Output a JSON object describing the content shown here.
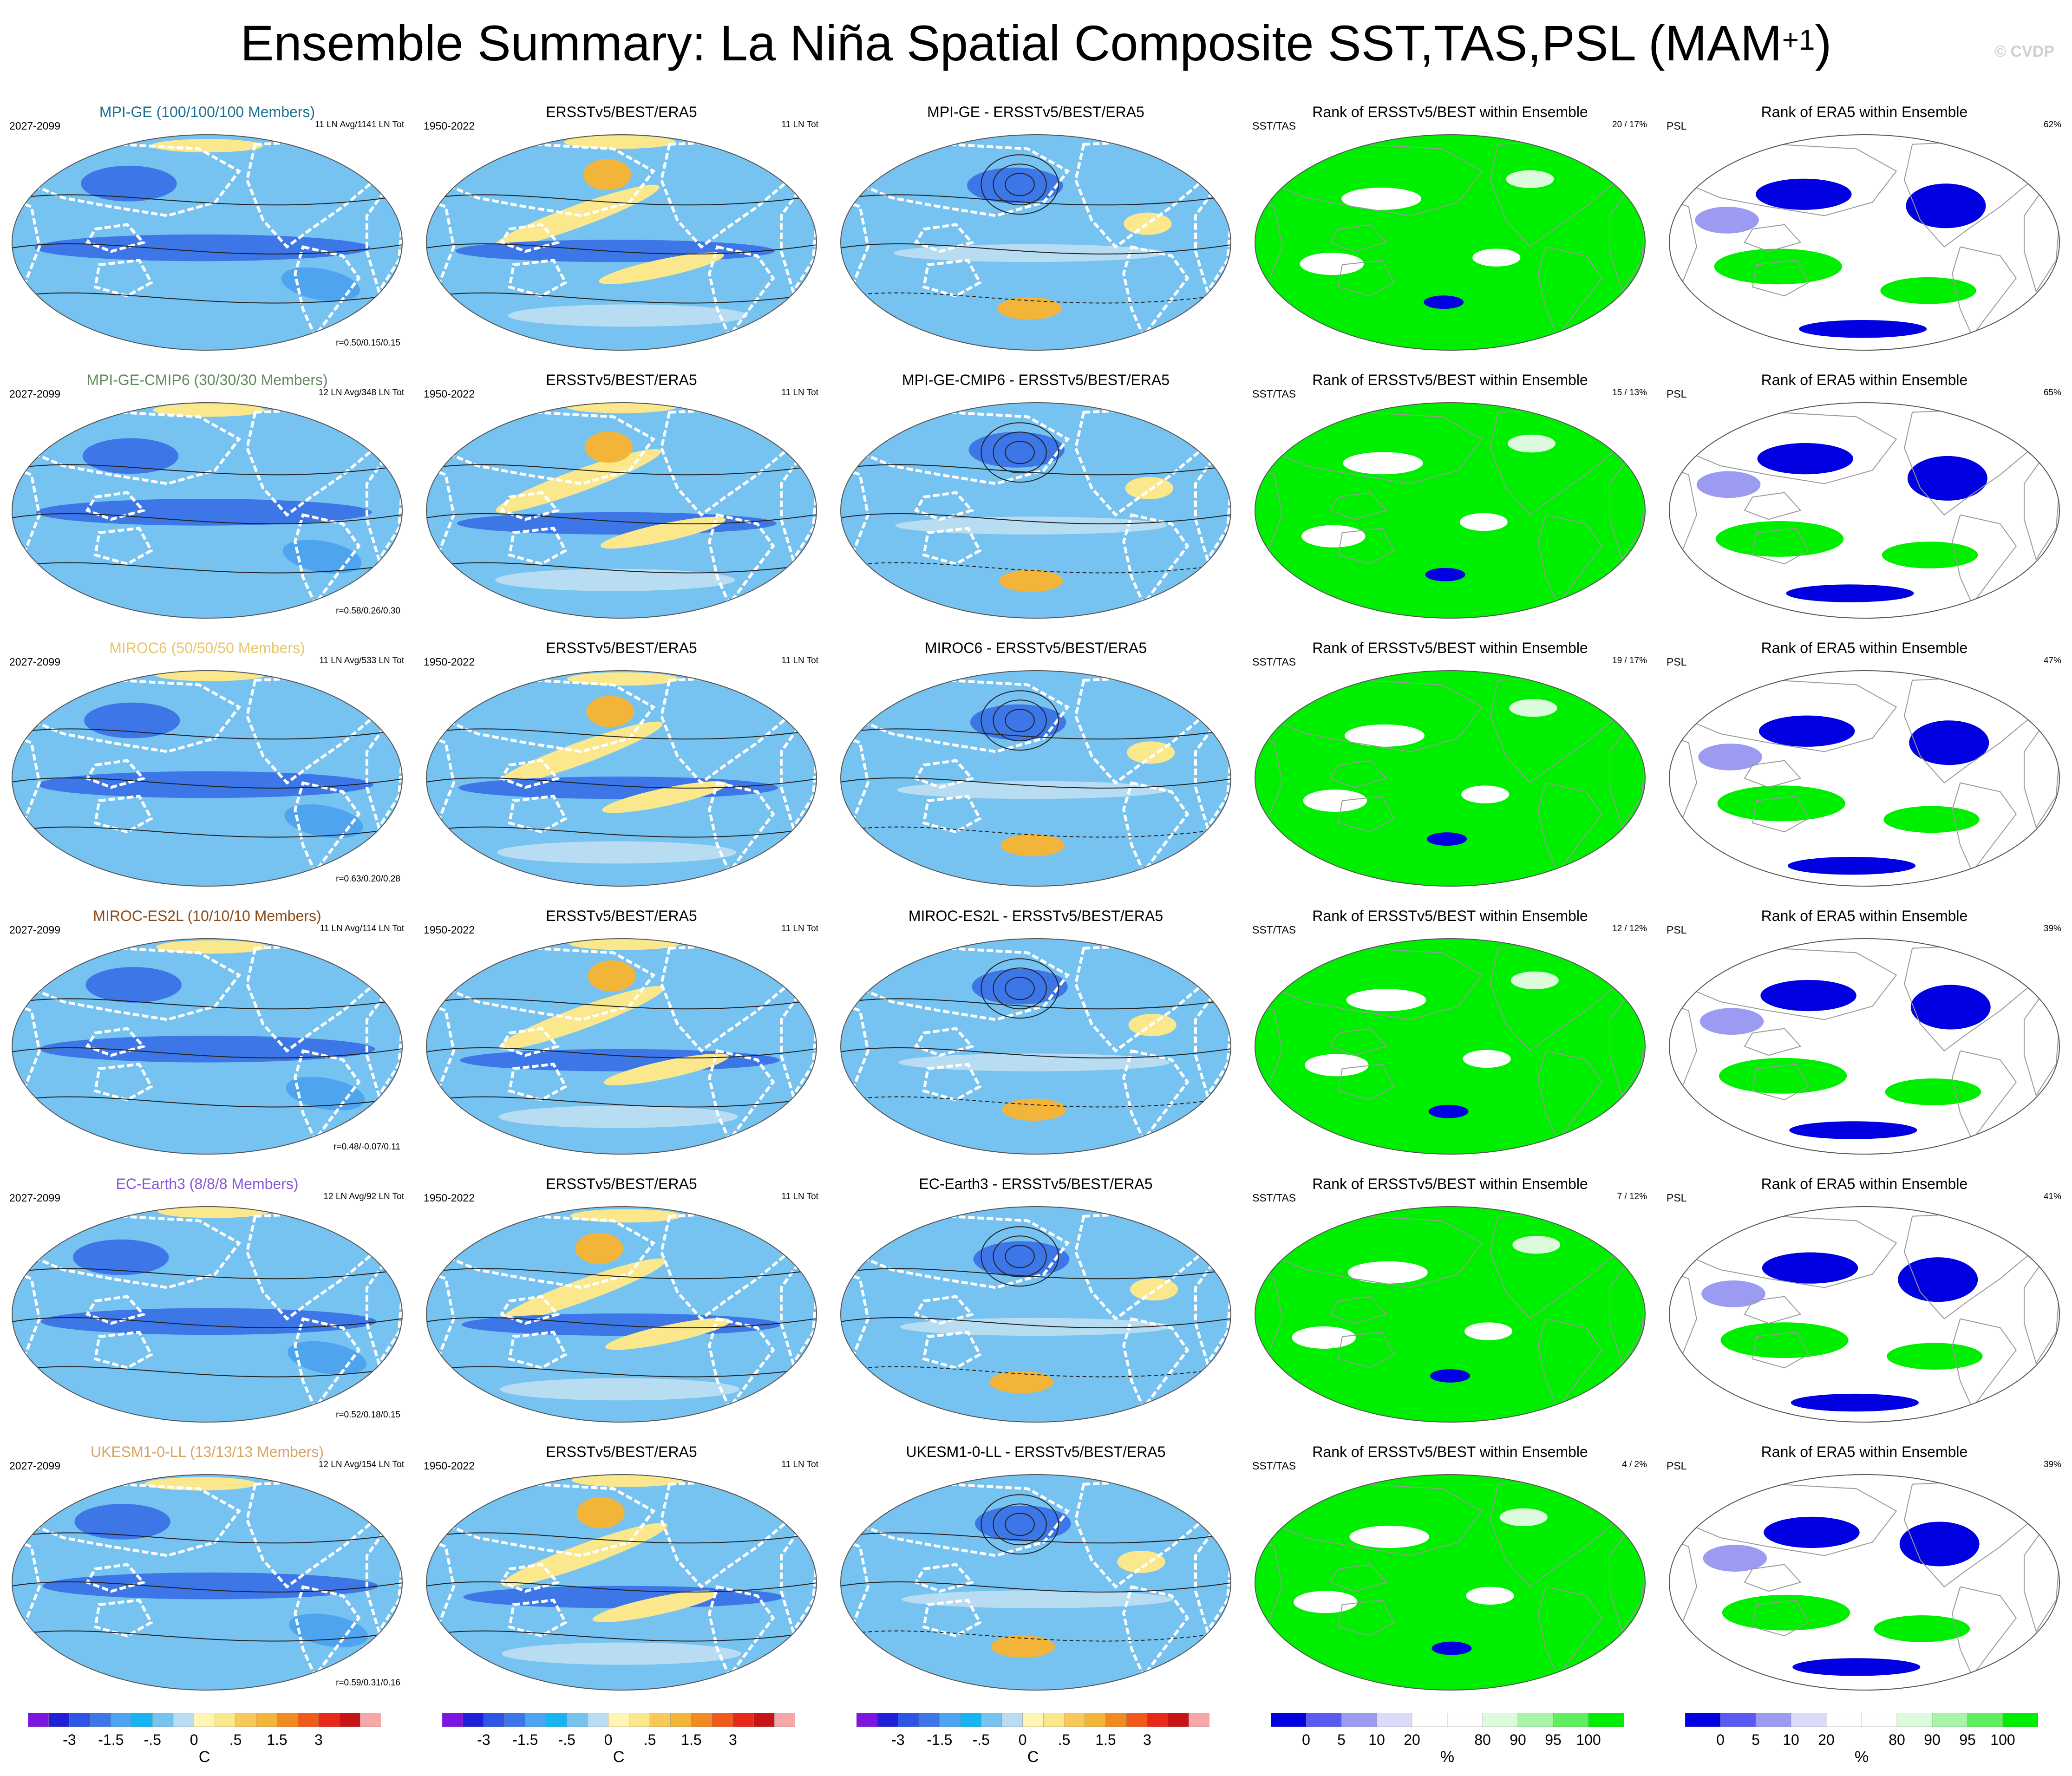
{
  "figure": {
    "title_main": "Ensemble Summary: La Niña Spatial Composite SST,TAS,PSL (MAM",
    "title_sup": "+1",
    "title_end": ")",
    "copyright": "© CVDP"
  },
  "colors": {
    "ocean_blue": "#76c2f0",
    "ocean_light": "#b8dcf2",
    "deep_blue": "#3d76e6",
    "yellow": "#fbe88c",
    "orange": "#f2b53a",
    "green_rank": "#00ee00",
    "blue_rank": "#0000e0",
    "model_colors": [
      "#1a7090",
      "#5f8a5a",
      "#e8c66a",
      "#8a4a1a",
      "#8a55d8",
      "#d8a466"
    ]
  },
  "rows": [
    {
      "model_title": "MPI-GE (100/100/100 Members)",
      "model_color": "#1a7090",
      "model_period": "2027-2099",
      "model_count": "11 LN Avg/1141 LN Tot",
      "model_r": "r=0.50/0.15/0.15",
      "obs_title": "ERSSTv5/BEST/ERA5",
      "obs_period": "1950-2022",
      "obs_count": "11 LN Tot",
      "diff_title": "MPI-GE - ERSSTv5/BEST/ERA5",
      "rank1_title": "Rank of ERSSTv5/BEST within Ensemble",
      "rank1_label": "SST/TAS",
      "rank1_pct": "20 /  17%",
      "rank2_title": "Rank of ERA5 within Ensemble",
      "rank2_label": "PSL",
      "rank2_pct": "62%"
    },
    {
      "model_title": "MPI-GE-CMIP6 (30/30/30 Members)",
      "model_color": "#5f8a5a",
      "model_period": "2027-2099",
      "model_count": "12 LN Avg/348 LN Tot",
      "model_r": "r=0.58/0.26/0.30",
      "obs_title": "ERSSTv5/BEST/ERA5",
      "obs_period": "1950-2022",
      "obs_count": "11 LN Tot",
      "diff_title": "MPI-GE-CMIP6 - ERSSTv5/BEST/ERA5",
      "rank1_title": "Rank of ERSSTv5/BEST within Ensemble",
      "rank1_label": "SST/TAS",
      "rank1_pct": "15 /  13%",
      "rank2_title": "Rank of ERA5 within Ensemble",
      "rank2_label": "PSL",
      "rank2_pct": "65%"
    },
    {
      "model_title": "MIROC6 (50/50/50 Members)",
      "model_color": "#e8c66a",
      "model_period": "2027-2099",
      "model_count": "11 LN Avg/533 LN Tot",
      "model_r": "r=0.63/0.20/0.28",
      "obs_title": "ERSSTv5/BEST/ERA5",
      "obs_period": "1950-2022",
      "obs_count": "11 LN Tot",
      "diff_title": "MIROC6 - ERSSTv5/BEST/ERA5",
      "rank1_title": "Rank of ERSSTv5/BEST within Ensemble",
      "rank1_label": "SST/TAS",
      "rank1_pct": "19 /  17%",
      "rank2_title": "Rank of ERA5 within Ensemble",
      "rank2_label": "PSL",
      "rank2_pct": "47%"
    },
    {
      "model_title": "MIROC-ES2L (10/10/10 Members)",
      "model_color": "#8a4a1a",
      "model_period": "2027-2099",
      "model_count": "11 LN Avg/114 LN Tot",
      "model_r": "r=0.48/-0.07/0.11",
      "obs_title": "ERSSTv5/BEST/ERA5",
      "obs_period": "1950-2022",
      "obs_count": "11 LN Tot",
      "diff_title": "MIROC-ES2L - ERSSTv5/BEST/ERA5",
      "rank1_title": "Rank of ERSSTv5/BEST within Ensemble",
      "rank1_label": "SST/TAS",
      "rank1_pct": "12 /  12%",
      "rank2_title": "Rank of ERA5 within Ensemble",
      "rank2_label": "PSL",
      "rank2_pct": "39%"
    },
    {
      "model_title": "EC-Earth3 (8/8/8 Members)",
      "model_color": "#8a55d8",
      "model_period": "2027-2099",
      "model_count": "12 LN Avg/92 LN Tot",
      "model_r": "r=0.52/0.18/0.15",
      "obs_title": "ERSSTv5/BEST/ERA5",
      "obs_period": "1950-2022",
      "obs_count": "11 LN Tot",
      "diff_title": "EC-Earth3 - ERSSTv5/BEST/ERA5",
      "rank1_title": "Rank of ERSSTv5/BEST within Ensemble",
      "rank1_label": "SST/TAS",
      "rank1_pct": "7 /  12%",
      "rank2_title": "Rank of ERA5 within Ensemble",
      "rank2_label": "PSL",
      "rank2_pct": "41%"
    },
    {
      "model_title": "UKESM1-0-LL (13/13/13 Members)",
      "model_color": "#d8a466",
      "model_period": "2027-2099",
      "model_count": "12 LN Avg/154 LN Tot",
      "model_r": "r=0.59/0.31/0.16",
      "obs_title": "ERSSTv5/BEST/ERA5",
      "obs_period": "1950-2022",
      "obs_count": "11 LN Tot",
      "diff_title": "UKESM1-0-LL - ERSSTv5/BEST/ERA5",
      "rank1_title": "Rank of ERSSTv5/BEST within Ensemble",
      "rank1_label": "SST/TAS",
      "rank1_pct": "4 /  2%",
      "rank2_title": "Rank of ERA5 within Ensemble",
      "rank2_label": "PSL",
      "rank2_pct": "39%"
    }
  ],
  "chart_data": [
    {
      "type": "heatmap",
      "name": "temperature composite colorbar",
      "unit": "C",
      "tick_labels": [
        "-3",
        "-1.5",
        "-.5",
        "0",
        ".5",
        "1.5",
        "3"
      ],
      "colors": [
        "#7d14e0",
        "#1f1fd8",
        "#2e54e6",
        "#3d76e6",
        "#4ea4ee",
        "#16b4f0",
        "#76c2f0",
        "#b8dcf2",
        "#fff6b4",
        "#fbe88c",
        "#f9c85a",
        "#f2b53a",
        "#f08a22",
        "#f05a1a",
        "#e8281a",
        "#c81414",
        "#f6a8a8"
      ]
    },
    {
      "type": "heatmap",
      "name": "rank percentile colorbar",
      "unit": "%",
      "tick_labels": [
        "0",
        "5",
        "10",
        "20",
        "80",
        "90",
        "95",
        "100"
      ],
      "colors": [
        "#0000e0",
        "#5a5af0",
        "#9b9bf2",
        "#dcdcfa",
        "#ffffff",
        "#ffffff",
        "#dcfadc",
        "#a8f4a8",
        "#60ee60",
        "#00ee00"
      ]
    }
  ]
}
